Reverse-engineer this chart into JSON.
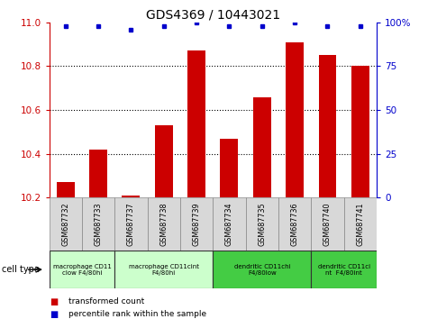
{
  "title": "GDS4369 / 10443021",
  "samples": [
    "GSM687732",
    "GSM687733",
    "GSM687737",
    "GSM687738",
    "GSM687739",
    "GSM687734",
    "GSM687735",
    "GSM687736",
    "GSM687740",
    "GSM687741"
  ],
  "red_values": [
    10.27,
    10.42,
    10.21,
    10.53,
    10.87,
    10.47,
    10.66,
    10.91,
    10.85,
    10.8
  ],
  "blue_values": [
    98,
    98,
    96,
    98,
    100,
    98,
    98,
    100,
    98,
    98
  ],
  "ylim_left": [
    10.2,
    11.0
  ],
  "ylim_right": [
    0,
    100
  ],
  "yticks_left": [
    10.2,
    10.4,
    10.6,
    10.8,
    11.0
  ],
  "ytick_labels_right": [
    "0",
    "25",
    "50",
    "75",
    "100%"
  ],
  "yticks_right": [
    0,
    25,
    50,
    75,
    100
  ],
  "red_color": "#cc0000",
  "blue_color": "#0000cc",
  "bar_width": 0.55,
  "group_labels": [
    "macrophage CD11\nclow F4/80hi",
    "macrophage CD11cint\nF4/80hi",
    "dendritic CD11chi\nF4/80low",
    "dendritic CD11ci\nnt  F4/80int"
  ],
  "group_ranges": [
    [
      0,
      2
    ],
    [
      2,
      5
    ],
    [
      5,
      8
    ],
    [
      8,
      10
    ]
  ],
  "group_colors": [
    "#ccffcc",
    "#ccffcc",
    "#44cc44",
    "#44cc44"
  ],
  "legend_red": "transformed count",
  "legend_blue": "percentile rank within the sample",
  "cell_type_label": "cell type",
  "grid_yticks": [
    10.4,
    10.6,
    10.8
  ],
  "sample_box_color": "#d8d8d8",
  "fig_bg": "#ffffff"
}
